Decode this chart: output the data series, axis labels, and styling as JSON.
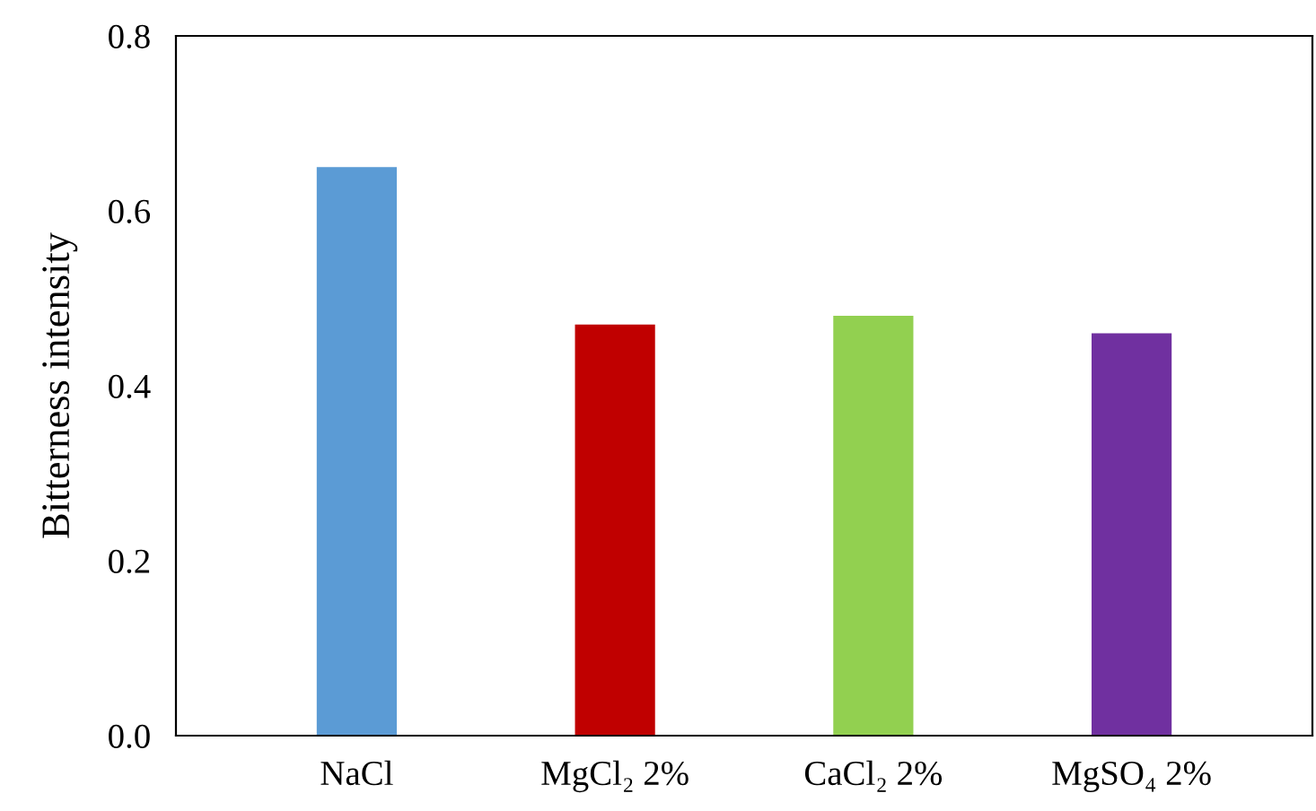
{
  "chart_data": {
    "type": "bar",
    "ylabel": "Bitterness intensity",
    "categories": [
      "NaCl",
      "MgCl₂ 2%",
      "CaCl₂ 2%",
      "MgSO₄ 2%"
    ],
    "values": [
      0.65,
      0.47,
      0.48,
      0.46
    ],
    "colors": [
      "#5b9bd5",
      "#c00000",
      "#92d050",
      "#7030a0"
    ],
    "ylim": [
      0,
      0.8
    ],
    "yticks": [
      {
        "value": 0,
        "label": "0.0"
      },
      {
        "value": 0.2,
        "label": "0.2"
      },
      {
        "value": 0.4,
        "label": "0.4"
      },
      {
        "value": 0.6,
        "label": "0.6"
      },
      {
        "value": 0.8,
        "label": "0.8"
      }
    ],
    "grid": false
  }
}
